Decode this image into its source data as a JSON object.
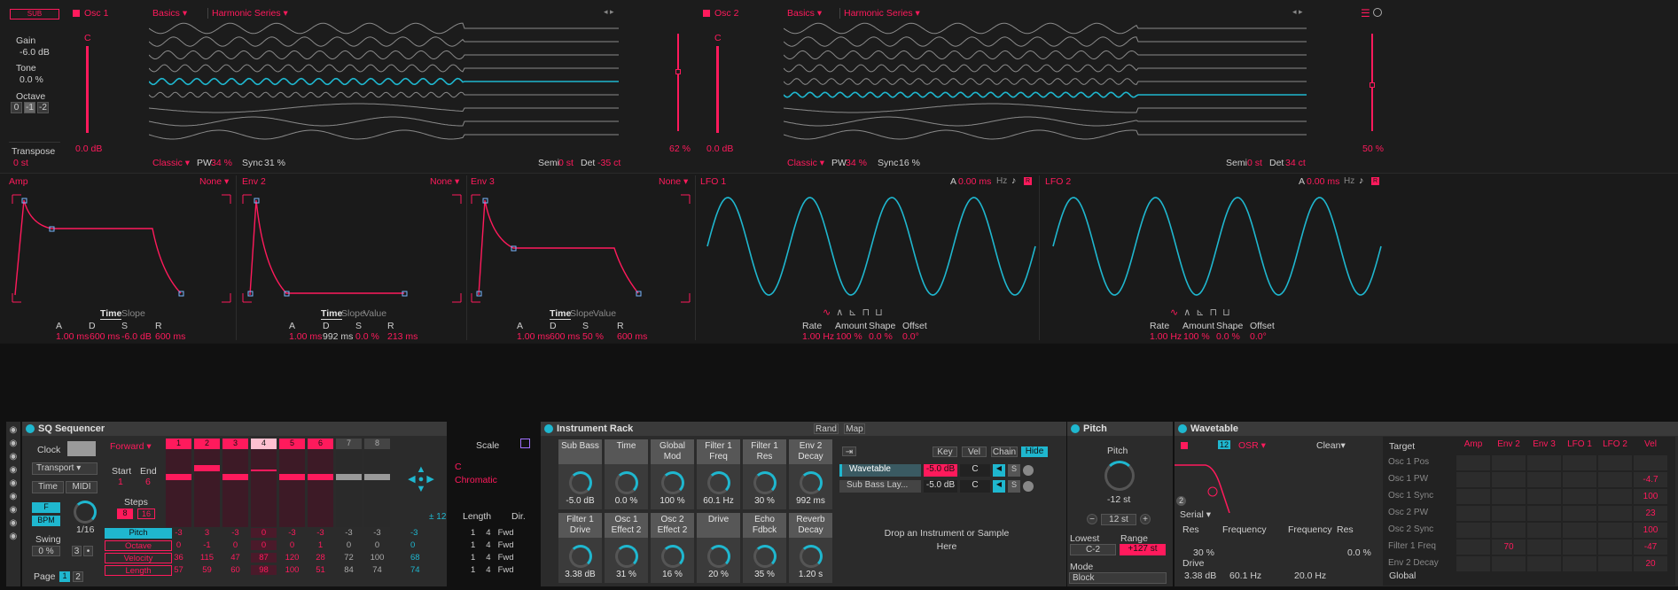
{
  "sub_btn": "SUB",
  "osc1": {
    "name": "Osc 1",
    "cat": "Basics",
    "sub": "Harmonic Series",
    "note": "C",
    "level": "0.0 dB",
    "pos": "62 %",
    "mode": "Classic",
    "pw_label": "PW",
    "pw": "34 %",
    "sync_label": "Sync",
    "sync": "31 %",
    "semi_label": "Semi",
    "semi": "0 st",
    "det_label": "Det",
    "det": "-35 ct"
  },
  "osc2": {
    "name": "Osc 2",
    "cat": "Basics",
    "sub": "Harmonic Series",
    "note": "C",
    "level": "0.0 dB",
    "pos": "50 %",
    "mode": "Classic",
    "pw_label": "PW",
    "pw": "34 %",
    "sync_label": "Sync",
    "sync": "16 %",
    "semi_label": "Semi",
    "semi": "0 st",
    "det_label": "Det",
    "det": "34 ct"
  },
  "left": {
    "gain_label": "Gain",
    "gain": "-6.0 dB",
    "tone_label": "Tone",
    "tone": "0.0 %",
    "octave_label": "Octave",
    "oct": [
      "0",
      "-1",
      "-2"
    ],
    "transpose_label": "Transpose",
    "transpose": "0 st"
  },
  "env": {
    "none": "None",
    "time": "Time",
    "slope": "Slope",
    "value": "Value",
    "a": "A",
    "d": "D",
    "s": "S",
    "r": "R",
    "amp": {
      "name": "Amp",
      "a": "1.00 ms",
      "d": "600 ms",
      "s": "-6.0 dB",
      "r": "600 ms"
    },
    "env2": {
      "name": "Env 2",
      "a": "1.00 ms",
      "d": "992 ms",
      "s": "0.0 %",
      "r": "213 ms"
    },
    "env3": {
      "name": "Env 3",
      "a": "1.00 ms",
      "d": "600 ms",
      "s": "50 %",
      "r": "600 ms"
    }
  },
  "lfo": {
    "rate_label": "Rate",
    "amount_label": "Amount",
    "shape_label": "Shape",
    "offset_label": "Offset",
    "a_label": "A",
    "hz": "Hz",
    "lfo1": {
      "name": "LFO 1",
      "a": "0.00 ms",
      "rate": "1.00 Hz",
      "amount": "100 %",
      "shape": "0.0 %",
      "offset": "0.0°"
    },
    "lfo2": {
      "name": "LFO 2",
      "a": "0.00 ms",
      "rate": "1.00 Hz",
      "amount": "100 %",
      "shape": "0.0 %",
      "offset": "0.0°"
    }
  },
  "sq": {
    "title": "SQ Sequencer",
    "clock": "Clock",
    "transport": "Transport",
    "time": "Time",
    "midi": "MIDI",
    "f": "F",
    "bpm": "BPM",
    "rate": "1/16",
    "swing_label": "Swing",
    "swing": "0 %",
    "steps_label": "Steps",
    "steps": [
      "8",
      "16"
    ],
    "page_label": "Page",
    "pages": [
      "1",
      "2"
    ],
    "start_label": "Start",
    "end_label": "End",
    "start": "1",
    "end": "6",
    "dir": "Forward",
    "step_nums": [
      "1",
      "2",
      "3",
      "4",
      "5",
      "6",
      "7",
      "8"
    ],
    "scale_label": "Scale",
    "scale_root": "C",
    "scale": "Chromatic",
    "length_label": "Length",
    "dir_label": "Dir.",
    "pm12": "± 12",
    "rows": [
      {
        "name": "Pitch",
        "vals": [
          "-3",
          "3",
          "-3",
          "0",
          "-3",
          "-3",
          "-3",
          "-3"
        ],
        "a": "1",
        "b": "4",
        "d": "Fwd"
      },
      {
        "name": "Octave",
        "vals": [
          "0",
          "-1",
          "0",
          "0",
          "0",
          "1",
          "0",
          "0"
        ],
        "a": "1",
        "b": "4",
        "d": "Fwd"
      },
      {
        "name": "Velocity",
        "vals": [
          "36",
          "115",
          "47",
          "87",
          "120",
          "28",
          "72",
          "100"
        ],
        "a": "1",
        "b": "4",
        "d": "Fwd"
      },
      {
        "name": "Length",
        "vals": [
          "57",
          "59",
          "60",
          "98",
          "100",
          "51",
          "84",
          "74"
        ],
        "a": "1",
        "b": "4",
        "d": "Fwd"
      }
    ],
    "side": [
      "-3",
      "0",
      "68",
      "74"
    ]
  },
  "rack": {
    "title": "Instrument Rack",
    "rand": "Rand",
    "map": "Map",
    "macros": [
      {
        "n": "Sub Bass",
        "v": "-5.0 dB"
      },
      {
        "n": "Time",
        "v": "0.0 %"
      },
      {
        "n": "Global Mod",
        "v": "100 %"
      },
      {
        "n": "Filter 1 Freq",
        "v": "60.1 Hz"
      },
      {
        "n": "Filter 1 Res",
        "v": "30 %"
      },
      {
        "n": "Env 2 Decay",
        "v": "992 ms"
      },
      {
        "n": "Filter 1 Drive",
        "v": "3.38 dB"
      },
      {
        "n": "Osc 1 Effect 2",
        "v": "31 %"
      },
      {
        "n": "Osc 2 Effect 2",
        "v": "16 %"
      },
      {
        "n": "Drive",
        "v": "20 %"
      },
      {
        "n": "Echo Fdbck",
        "v": "35 %"
      },
      {
        "n": "Reverb Decay",
        "v": "1.20 s"
      }
    ],
    "key": "Key",
    "vel": "Vel",
    "chain": "Chain",
    "hide": "Hide",
    "chains": [
      {
        "n": "Wavetable",
        "v": "-5.0 dB",
        "p": "C"
      },
      {
        "n": "Sub Bass Lay...",
        "v": "-5.0 dB",
        "p": "C"
      }
    ],
    "s": "S",
    "drop": "Drop an Instrument or Sample Here"
  },
  "pitch": {
    "title": "Pitch",
    "label": "Pitch",
    "val": "-12 st",
    "step": "12 st",
    "lowest_label": "Lowest",
    "range_label": "Range",
    "lowest": "C-2",
    "range": "+127 st",
    "mode_label": "Mode",
    "mode": "Block"
  },
  "wt": {
    "title": "Wavetable",
    "osr": "OSR",
    "clean": "Clean",
    "twelve": "12",
    "serial": "Serial",
    "res_label": "Res",
    "freq_label": "Frequency",
    "res": "30 %",
    "drive_label": "Drive",
    "drive": "3.38 dB",
    "freq": "60.1 Hz",
    "f2_label": "Frequency",
    "r2_label": "Res",
    "f2": "20.0 Hz",
    "r2": "0.0 %",
    "two": "2",
    "target": "Target",
    "cols": [
      "Amp",
      "Env 2",
      "Env 3",
      "LFO 1",
      "LFO 2",
      "Vel"
    ],
    "targets": [
      {
        "n": "Osc 1 Pos",
        "v": ""
      },
      {
        "n": "Osc 1 PW",
        "v": "-4.7"
      },
      {
        "n": "Osc 1 Sync",
        "v": "100"
      },
      {
        "n": "Osc 2 PW",
        "v": "23"
      },
      {
        "n": "Osc 2 Sync",
        "v": "100"
      },
      {
        "n": "Filter 1 Freq",
        "v": "-47",
        "env2": "70"
      },
      {
        "n": "Env 2 Decay",
        "v": "20"
      }
    ],
    "global": "Global"
  }
}
